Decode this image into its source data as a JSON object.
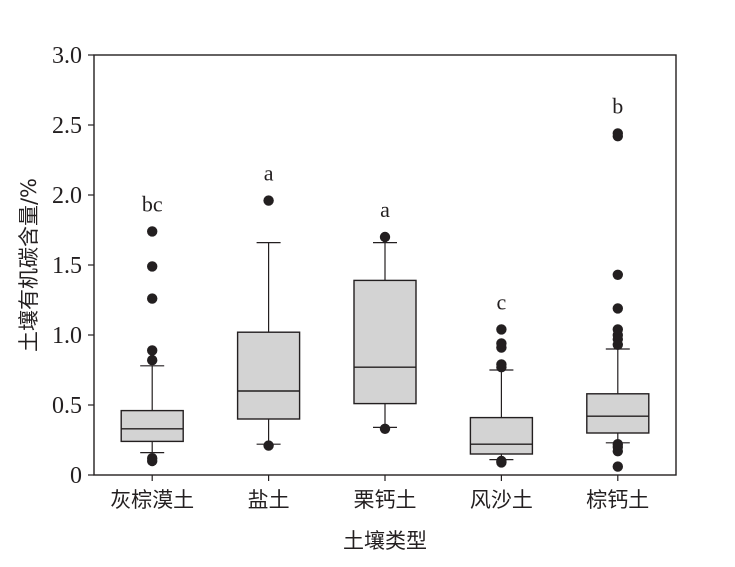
{
  "chart_data": {
    "type": "box",
    "ylabel": "土壤有机碳含量/%",
    "xlabel": "土壤类型",
    "ylim": [
      0,
      3.0
    ],
    "yticks": [
      {
        "value": 0,
        "label": "0"
      },
      {
        "value": 0.5,
        "label": "0.5"
      },
      {
        "value": 1.0,
        "label": "1.0"
      },
      {
        "value": 1.5,
        "label": "1.5"
      },
      {
        "value": 2.0,
        "label": "2.0"
      },
      {
        "value": 2.5,
        "label": "2.5"
      },
      {
        "value": 3.0,
        "label": "3.0"
      }
    ],
    "categories": [
      "灰棕漠土",
      "盐土",
      "栗钙土",
      "风沙土",
      "棕钙土"
    ],
    "boxes": [
      {
        "category": "灰棕漠土",
        "whisker_low": 0.16,
        "q1": 0.24,
        "median": 0.33,
        "q3": 0.46,
        "whisker_high": 0.78,
        "outliers": [
          0.1,
          0.12,
          0.82,
          0.89,
          1.26,
          1.49,
          1.74
        ],
        "significance": "bc"
      },
      {
        "category": "盐土",
        "whisker_low": 0.22,
        "q1": 0.4,
        "median": 0.6,
        "q3": 1.02,
        "whisker_high": 1.66,
        "outliers": [
          0.21,
          1.96
        ],
        "significance": "a"
      },
      {
        "category": "栗钙土",
        "whisker_low": 0.34,
        "q1": 0.51,
        "median": 0.77,
        "q3": 1.39,
        "whisker_high": 1.66,
        "outliers": [
          0.33,
          1.7
        ],
        "significance": "a"
      },
      {
        "category": "风沙土",
        "whisker_low": 0.11,
        "q1": 0.15,
        "median": 0.22,
        "q3": 0.41,
        "whisker_high": 0.75,
        "outliers": [
          0.09,
          0.1,
          0.77,
          0.79,
          0.91,
          0.94,
          1.04
        ],
        "significance": "c"
      },
      {
        "category": "棕钙土",
        "whisker_low": 0.23,
        "q1": 0.3,
        "median": 0.42,
        "q3": 0.58,
        "whisker_high": 0.9,
        "outliers": [
          0.06,
          0.17,
          0.2,
          0.22,
          0.93,
          0.97,
          1.0,
          1.04,
          1.19,
          1.43,
          2.42,
          2.44
        ],
        "significance": "b"
      }
    ],
    "colors": {
      "box_fill": "#d3d3d3",
      "ink": "#231f20"
    }
  }
}
